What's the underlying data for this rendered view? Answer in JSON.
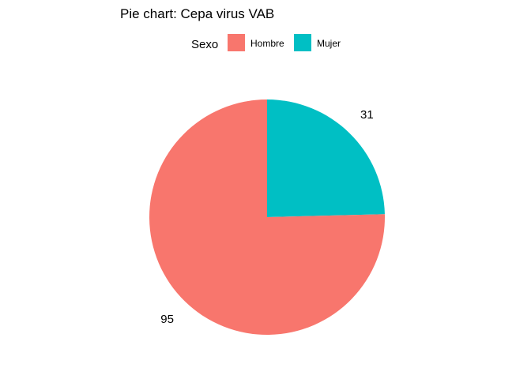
{
  "chart_data": {
    "type": "pie",
    "title": "Pie chart: Cepa virus VAB",
    "legend_title": "Sexo",
    "legend_position": "top",
    "categories": [
      "Mujer",
      "Hombre"
    ],
    "values": [
      31,
      95
    ],
    "data_labels": [
      "31",
      "95"
    ],
    "colors": {
      "Hombre": "#F8766D",
      "Mujer": "#00BFC4"
    },
    "legend": [
      {
        "label": "Hombre",
        "color": "#F8766D"
      },
      {
        "label": "Mujer",
        "color": "#00BFC4"
      }
    ]
  }
}
